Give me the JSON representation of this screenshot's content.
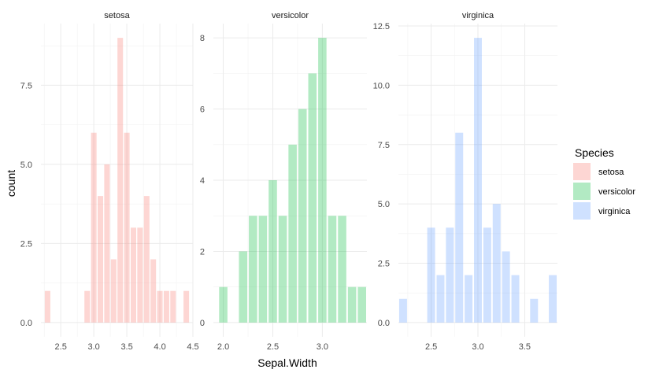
{
  "chart_data": {
    "type": "bar",
    "xlabel": "Sepal.Width",
    "ylabel": "count",
    "legend": {
      "title": "Species",
      "placement": "right",
      "entries": [
        "setosa",
        "versicolor",
        "virginica"
      ]
    },
    "grid": true,
    "panels": [
      {
        "name": "setosa",
        "color": "#F8766D",
        "xlim": [
          2.2,
          4.5
        ],
        "ylim": [
          -0.45,
          9.45
        ],
        "x_ticks": [
          2.5,
          3.0,
          3.5,
          4.0,
          4.5
        ],
        "x_tick_labels": [
          "2.5",
          "3.0",
          "3.5",
          "4.0",
          "4.5"
        ],
        "y_ticks": [
          0,
          2.5,
          5,
          7.5
        ],
        "y_tick_labels": [
          "0.0",
          "2.5",
          "5.0",
          "7.5"
        ],
        "bars": [
          {
            "x": 2.3,
            "count": 1
          },
          {
            "x": 2.9,
            "count": 1
          },
          {
            "x": 3.0,
            "count": 6
          },
          {
            "x": 3.1,
            "count": 4
          },
          {
            "x": 3.2,
            "count": 5
          },
          {
            "x": 3.3,
            "count": 2
          },
          {
            "x": 3.4,
            "count": 9
          },
          {
            "x": 3.5,
            "count": 6
          },
          {
            "x": 3.6,
            "count": 3
          },
          {
            "x": 3.7,
            "count": 3
          },
          {
            "x": 3.8,
            "count": 4
          },
          {
            "x": 3.9,
            "count": 2
          },
          {
            "x": 4.0,
            "count": 1
          },
          {
            "x": 4.1,
            "count": 1
          },
          {
            "x": 4.2,
            "count": 1
          },
          {
            "x": 4.4,
            "count": 1
          }
        ]
      },
      {
        "name": "versicolor",
        "color": "#00BA38",
        "xlim": [
          1.9,
          3.45
        ],
        "ylim": [
          -0.4,
          8.4
        ],
        "x_ticks": [
          2.0,
          2.5,
          3.0
        ],
        "x_tick_labels": [
          "2.0",
          "2.5",
          "3.0"
        ],
        "y_ticks": [
          0,
          2,
          4,
          6,
          8
        ],
        "y_tick_labels": [
          "0",
          "2",
          "4",
          "6",
          "8"
        ],
        "bars": [
          {
            "x": 2.0,
            "count": 1
          },
          {
            "x": 2.2,
            "count": 2
          },
          {
            "x": 2.3,
            "count": 3
          },
          {
            "x": 2.4,
            "count": 3
          },
          {
            "x": 2.5,
            "count": 4
          },
          {
            "x": 2.6,
            "count": 3
          },
          {
            "x": 2.7,
            "count": 5
          },
          {
            "x": 2.8,
            "count": 6
          },
          {
            "x": 2.9,
            "count": 7
          },
          {
            "x": 3.0,
            "count": 8
          },
          {
            "x": 3.1,
            "count": 3
          },
          {
            "x": 3.2,
            "count": 3
          },
          {
            "x": 3.3,
            "count": 1
          },
          {
            "x": 3.4,
            "count": 1
          }
        ]
      },
      {
        "name": "virginica",
        "color": "#619CFF",
        "xlim": [
          2.15,
          3.85
        ],
        "ylim": [
          -0.6,
          12.6
        ],
        "x_ticks": [
          2.5,
          3.0,
          3.5
        ],
        "x_tick_labels": [
          "2.5",
          "3.0",
          "3.5"
        ],
        "y_ticks": [
          0,
          2.5,
          5,
          7.5,
          10,
          12.5
        ],
        "y_tick_labels": [
          "0.0",
          "2.5",
          "5.0",
          "7.5",
          "10.0",
          "12.5"
        ],
        "bars": [
          {
            "x": 2.2,
            "count": 1
          },
          {
            "x": 2.5,
            "count": 4
          },
          {
            "x": 2.6,
            "count": 2
          },
          {
            "x": 2.7,
            "count": 4
          },
          {
            "x": 2.8,
            "count": 8
          },
          {
            "x": 2.9,
            "count": 2
          },
          {
            "x": 3.0,
            "count": 12
          },
          {
            "x": 3.1,
            "count": 4
          },
          {
            "x": 3.2,
            "count": 5
          },
          {
            "x": 3.3,
            "count": 3
          },
          {
            "x": 3.4,
            "count": 2
          },
          {
            "x": 3.6,
            "count": 1
          },
          {
            "x": 3.8,
            "count": 2
          }
        ]
      }
    ]
  }
}
